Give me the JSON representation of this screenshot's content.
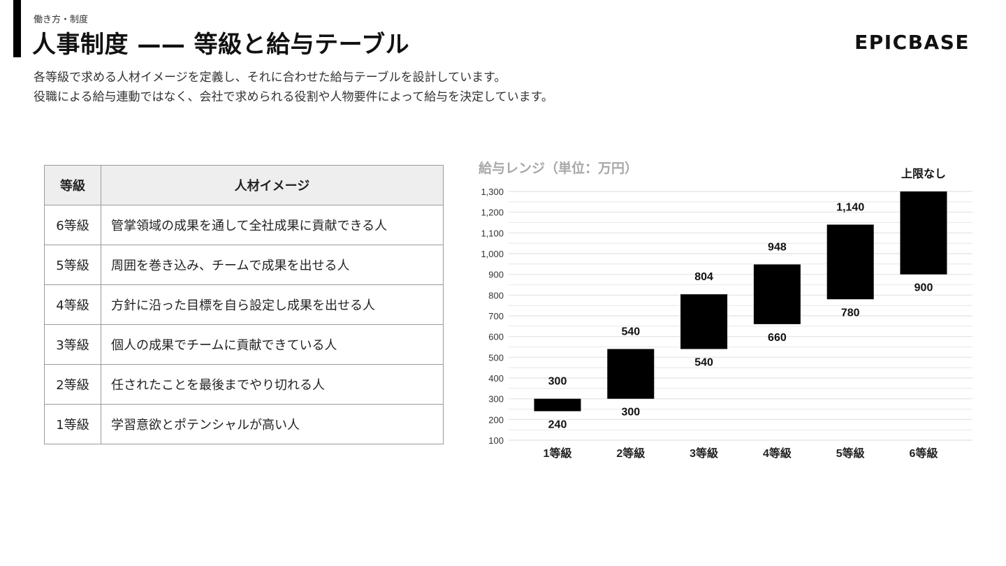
{
  "header": {
    "breadcrumb": "働き方・制度",
    "title": "人事制度 —— 等級と給与テーブル",
    "brand": "EPICBASE"
  },
  "description": {
    "line1": "各等級で求める人材イメージを定義し、それに合わせた給与テーブルを設計しています。",
    "line2": "役職による給与連動ではなく、会社で求められる役割や人物要件によって給与を決定しています。"
  },
  "table": {
    "headers": {
      "grade": "等級",
      "image": "人材イメージ"
    },
    "rows": [
      {
        "grade": "6等級",
        "image": "管掌領域の成果を通して全社成果に貢献できる人"
      },
      {
        "grade": "5等級",
        "image": "周囲を巻き込み、チームで成果を出せる人"
      },
      {
        "grade": "4等級",
        "image": "方針に沿った目標を自ら設定し成果を出せる人"
      },
      {
        "grade": "3等級",
        "image": "個人の成果でチームに貢献できている人"
      },
      {
        "grade": "2等級",
        "image": "任されたことを最後までやり切れる人"
      },
      {
        "grade": "1等級",
        "image": "学習意欲とポテンシャルが高い人"
      }
    ]
  },
  "chart_data": {
    "type": "bar",
    "title": "給与レンジ（単位：万円）",
    "categories": [
      "1等級",
      "2等級",
      "3等級",
      "4等級",
      "5等級",
      "6等級"
    ],
    "ranges": [
      {
        "min": 240,
        "max": 300,
        "min_label": "240",
        "max_label": "300"
      },
      {
        "min": 300,
        "max": 540,
        "min_label": "300",
        "max_label": "540"
      },
      {
        "min": 540,
        "max": 804,
        "min_label": "540",
        "max_label": "804"
      },
      {
        "min": 660,
        "max": 948,
        "min_label": "660",
        "max_label": "948"
      },
      {
        "min": 780,
        "max": 1140,
        "min_label": "780",
        "max_label": "1,140"
      },
      {
        "min": 900,
        "max": 1300,
        "min_label": "900",
        "max_label": "上限なし"
      }
    ],
    "ylim": [
      100,
      1300
    ],
    "yticks": [
      "100",
      "200",
      "300",
      "400",
      "500",
      "600",
      "700",
      "800",
      "900",
      "1,000",
      "1,100",
      "1,200",
      "1,300"
    ],
    "grid": true,
    "bar_color": "#000000",
    "grid_color": "#e2e2e2",
    "xlabel": "",
    "ylabel": ""
  }
}
